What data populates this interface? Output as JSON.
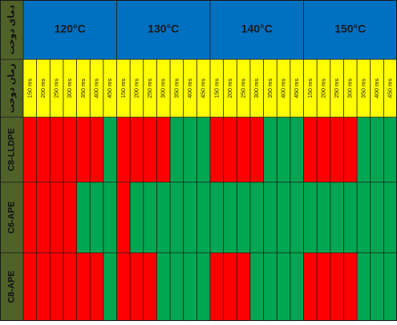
{
  "chart_data": {
    "type": "heatmap",
    "row_header_labels": {
      "temperature": "دمای دوخت",
      "time": "زمان دوخت"
    },
    "temperatures": [
      "120°C",
      "130°C",
      "140°C",
      "150°C"
    ],
    "times": [
      "150 ms",
      "200 ms",
      "250 ms",
      "300 ms",
      "350 ms",
      "400 ms",
      "450 ms"
    ],
    "materials": [
      "C8-LLDPE",
      "C6-APE",
      "C8-APE"
    ],
    "cell_colors": {
      "red": "#ff0000",
      "green": "#00a651"
    },
    "header_colors": {
      "temperature_row": "#0070c0",
      "time_row": "#ffff00",
      "label_column": "#4f6228"
    },
    "values": [
      [
        "red",
        "red",
        "red",
        "red",
        "red",
        "red",
        "green",
        "red",
        "red",
        "red",
        "red",
        "green",
        "green",
        "green",
        "red",
        "red",
        "red",
        "red",
        "green",
        "green",
        "green",
        "red",
        "red",
        "red",
        "red",
        "green",
        "green",
        "green"
      ],
      [
        "red",
        "red",
        "red",
        "red",
        "green",
        "green",
        "green",
        "red",
        "green",
        "green",
        "green",
        "green",
        "green",
        "green",
        "green",
        "green",
        "green",
        "green",
        "green",
        "green",
        "green",
        "green",
        "green",
        "green",
        "green",
        "green",
        "green",
        "green"
      ],
      [
        "red",
        "red",
        "red",
        "red",
        "red",
        "red",
        "green",
        "red",
        "red",
        "red",
        "green",
        "green",
        "green",
        "green",
        "red",
        "red",
        "red",
        "green",
        "green",
        "green",
        "green",
        "red",
        "red",
        "red",
        "red",
        "green",
        "green",
        "green"
      ]
    ]
  }
}
